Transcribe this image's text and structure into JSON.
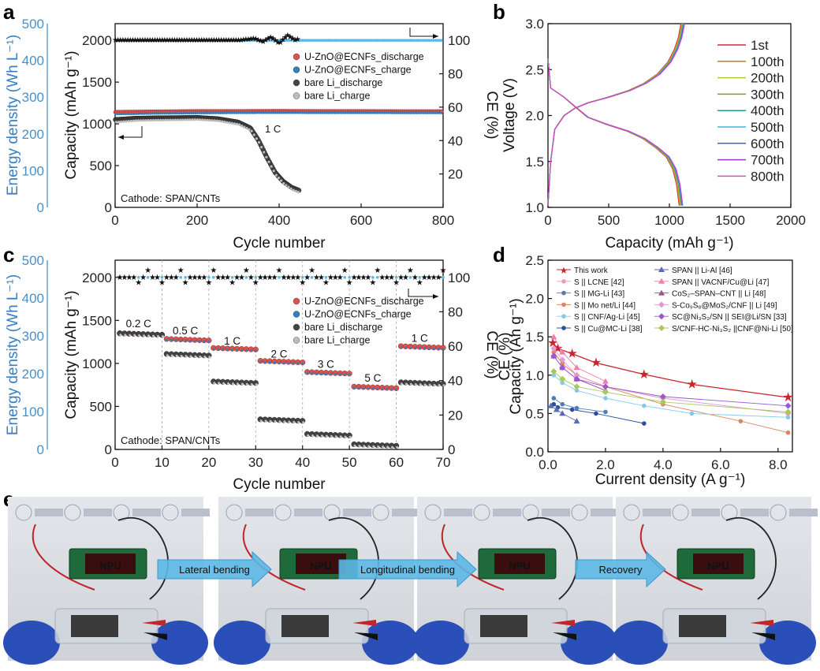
{
  "panels": {
    "a": "a",
    "b": "b",
    "c": "c",
    "d": "d",
    "e": "e"
  },
  "colors": {
    "uzno_discharge": "#d9534f",
    "uzno_charge": "#2f7fc1",
    "bare_discharge": "#444444",
    "bare_charge": "#bdbdbd",
    "energy_axis": "#4a90c8",
    "arrow": "#5bb8e6"
  },
  "chart_data": [
    {
      "id": "a",
      "type": "scatter",
      "xlabel": "Cycle number",
      "ylabel": "Capacity (mAh g⁻¹)",
      "y2label": "CE (%)",
      "y3label": "Energy density (Wh L⁻¹)",
      "xlim": [
        0,
        800
      ],
      "ylim": [
        0,
        2200
      ],
      "y2lim": [
        0,
        110
      ],
      "y3lim": [
        0,
        500
      ],
      "xticks": [
        0,
        200,
        400,
        600,
        800
      ],
      "yticks": [
        0,
        500,
        1000,
        1500,
        2000
      ],
      "y2ticks": [
        20,
        40,
        60,
        80,
        100
      ],
      "y3ticks": [
        0,
        100,
        200,
        300,
        400,
        500
      ],
      "annotation": "1 C",
      "note": "Cathode: SPAN/CNTs",
      "series": [
        {
          "name": "U-ZnO@ECNFs_discharge",
          "x": [
            1,
            100,
            200,
            300,
            400,
            500,
            600,
            700,
            800
          ],
          "y": [
            1140,
            1145,
            1150,
            1150,
            1152,
            1150,
            1150,
            1148,
            1148
          ]
        },
        {
          "name": "U-ZnO@ECNFs_charge",
          "x": [
            1,
            100,
            200,
            300,
            400,
            500,
            600,
            700,
            800
          ],
          "y": [
            1130,
            1138,
            1142,
            1145,
            1146,
            1145,
            1145,
            1144,
            1143
          ]
        },
        {
          "name": "bare Li_discharge",
          "x": [
            1,
            50,
            100,
            150,
            200,
            250,
            300,
            330,
            350,
            370,
            390,
            410,
            430,
            450
          ],
          "y": [
            1050,
            1065,
            1070,
            1072,
            1075,
            1060,
            1020,
            950,
            800,
            600,
            420,
            310,
            240,
            200
          ]
        },
        {
          "name": "bare Li_charge",
          "x": [
            1,
            50,
            100,
            150,
            200,
            250,
            300,
            330,
            350,
            370,
            390,
            410,
            430,
            450
          ],
          "y": [
            1040,
            1058,
            1063,
            1066,
            1070,
            1055,
            1012,
            940,
            790,
            590,
            410,
            300,
            232,
            192
          ]
        }
      ],
      "ce_series": [
        {
          "name": "U-ZnO@ECNFs",
          "x": [
            1,
            100,
            200,
            300,
            400,
            500,
            600,
            700,
            800
          ],
          "y": [
            100,
            100,
            100,
            100,
            100,
            100,
            100,
            100,
            100
          ]
        },
        {
          "name": "bare Li",
          "x": [
            1,
            100,
            200,
            300,
            340,
            360,
            380,
            400,
            420,
            440,
            450
          ],
          "y": [
            100,
            100,
            100,
            100,
            101,
            99,
            102,
            98,
            103,
            100,
            101
          ]
        }
      ]
    },
    {
      "id": "b",
      "type": "line",
      "xlabel": "Capacity (mAh g⁻¹)",
      "ylabel": "Voltage (V)",
      "xlim": [
        0,
        2000
      ],
      "ylim": [
        1.0,
        3.0
      ],
      "xticks": [
        0,
        500,
        1000,
        1500,
        2000
      ],
      "yticks": [
        1.0,
        1.5,
        2.0,
        2.5,
        3.0
      ],
      "series": [
        {
          "name": "1st",
          "color": "#d7263d",
          "cap": 1080
        },
        {
          "name": "100th",
          "color": "#c77d1a",
          "cap": 1085
        },
        {
          "name": "200th",
          "color": "#b8c42a",
          "cap": 1090
        },
        {
          "name": "300th",
          "color": "#7ea321",
          "cap": 1095
        },
        {
          "name": "400th",
          "color": "#1f9e8f",
          "cap": 1100
        },
        {
          "name": "500th",
          "color": "#3bb4e8",
          "cap": 1100
        },
        {
          "name": "600th",
          "color": "#4a5fc4",
          "cap": 1105
        },
        {
          "name": "700th",
          "color": "#8e3ec9",
          "cap": 1110
        },
        {
          "name": "800th",
          "color": "#d94ac5",
          "cap": 1110
        }
      ]
    },
    {
      "id": "c",
      "type": "scatter",
      "xlabel": "Cycle number",
      "ylabel": "Capacity (mAh g⁻¹)",
      "y2label": "CE (%)",
      "y3label": "Energy density (Wh L⁻¹)",
      "xlim": [
        0,
        70
      ],
      "ylim": [
        0,
        2200
      ],
      "y2lim": [
        0,
        110
      ],
      "y3lim": [
        0,
        500
      ],
      "xticks": [
        0,
        10,
        20,
        30,
        40,
        50,
        60,
        70
      ],
      "yticks": [
        0,
        500,
        1000,
        1500,
        2000
      ],
      "y2ticks": [
        0,
        20,
        40,
        60,
        80,
        100
      ],
      "y3ticks": [
        0,
        100,
        200,
        300,
        400,
        500
      ],
      "note": "Cathode: SPAN/CNTs",
      "rates": [
        {
          "label": "0.2 C",
          "x": 5,
          "y": 1420
        },
        {
          "label": "0.5 C",
          "x": 15,
          "y": 1340
        },
        {
          "label": "1 C",
          "x": 25,
          "y": 1220
        },
        {
          "label": "2 C",
          "x": 35,
          "y": 1070
        },
        {
          "label": "3 C",
          "x": 45,
          "y": 950
        },
        {
          "label": "5 C",
          "x": 55,
          "y": 790
        },
        {
          "label": "1 C",
          "x": 65,
          "y": 1250
        }
      ],
      "segments": [
        {
          "from": 1,
          "to": 10,
          "uzno": 1350,
          "bare": 1350
        },
        {
          "from": 11,
          "to": 20,
          "uzno": 1285,
          "bare": 1110
        },
        {
          "from": 21,
          "to": 30,
          "uzno": 1180,
          "bare": 790
        },
        {
          "from": 31,
          "to": 40,
          "uzno": 1030,
          "bare": 350
        },
        {
          "from": 41,
          "to": 50,
          "uzno": 900,
          "bare": 180
        },
        {
          "from": 51,
          "to": 60,
          "uzno": 730,
          "bare": 60
        },
        {
          "from": 61,
          "to": 70,
          "uzno": 1200,
          "bare": 780
        }
      ],
      "series": [
        {
          "name": "U-ZnO@ECNFs_discharge"
        },
        {
          "name": "U-ZnO@ECNFs_charge"
        },
        {
          "name": "bare Li_discharge"
        },
        {
          "name": "bare Li_charge"
        }
      ]
    },
    {
      "id": "d",
      "type": "line",
      "xlabel": "Current density (A g⁻¹)",
      "ylabel": "Capacity (Ah g⁻¹)",
      "ylabel_overlap": "CE (%)",
      "xlim": [
        0,
        8.5
      ],
      "ylim": [
        0,
        2.5
      ],
      "xticks": [
        "0.0",
        "2.0",
        "4.0",
        "6.0",
        "8.0"
      ],
      "yticks": [
        "0.0",
        "0.5",
        "1.0",
        "1.5",
        "2.0",
        "2.5"
      ],
      "series": [
        {
          "name": "This work",
          "color": "#c9252c",
          "marker": "star",
          "x": [
            0.17,
            0.34,
            0.84,
            1.67,
            3.34,
            5.01,
            8.35
          ],
          "y": [
            1.42,
            1.35,
            1.28,
            1.16,
            1.01,
            0.88,
            0.71
          ]
        },
        {
          "name": "S || LCNE [42]",
          "color": "#f29ab0",
          "marker": "circle",
          "x": [
            0.2,
            0.5,
            1.0,
            2.0,
            4.0
          ],
          "y": [
            1.3,
            1.15,
            1.0,
            0.85,
            0.7
          ]
        },
        {
          "name": "S || MG-Li [43]",
          "color": "#4f7fb8",
          "marker": "circle",
          "x": [
            0.2,
            0.5,
            1.0,
            2.0
          ],
          "y": [
            0.7,
            0.62,
            0.57,
            0.52
          ]
        },
        {
          "name": "S || Mo net/Li [44]",
          "color": "#d9875f",
          "marker": "circle",
          "x": [
            0.2,
            0.5,
            1.0,
            2.0,
            4.0,
            6.7,
            8.35
          ],
          "y": [
            1.3,
            1.15,
            1.0,
            0.85,
            0.62,
            0.4,
            0.25
          ]
        },
        {
          "name": "S || CNF/Ag-Li [45]",
          "color": "#85c9ea",
          "marker": "circle",
          "x": [
            0.2,
            0.5,
            1.0,
            2.0,
            3.34,
            5.0,
            8.35
          ],
          "y": [
            1.0,
            0.9,
            0.8,
            0.7,
            0.6,
            0.5,
            0.45
          ]
        },
        {
          "name": "S || Cu@MC-Li [38]",
          "color": "#2a4fa0",
          "marker": "circle",
          "x": [
            0.2,
            0.34,
            0.84,
            1.67,
            3.34
          ],
          "y": [
            0.62,
            0.58,
            0.55,
            0.5,
            0.37
          ]
        },
        {
          "name": "SPAN || Li-Al [46]",
          "color": "#5a6bb3",
          "marker": "triangle",
          "x": [
            0.1,
            0.3,
            0.5,
            1.0
          ],
          "y": [
            0.6,
            0.55,
            0.5,
            0.4
          ]
        },
        {
          "name": "SPAN || VACNF/Cu@Li [47]",
          "color": "#f07ca8",
          "marker": "triangle",
          "x": [
            0.2,
            0.5,
            1.0,
            2.0
          ],
          "y": [
            1.5,
            1.3,
            1.1,
            0.92
          ]
        },
        {
          "name": "CoS₂–SPAN–CNT || Li [48]",
          "color": "#a54c8a",
          "marker": "triangle",
          "x": [
            0.2,
            0.5,
            1.0,
            2.0
          ],
          "y": [
            1.25,
            1.1,
            0.95,
            0.8
          ]
        },
        {
          "name": "S-Co₉S₈@MoS₂/CNF || Li [49]",
          "color": "#e19bd0",
          "marker": "diamond",
          "x": [
            0.2,
            0.5,
            1.0,
            2.0,
            4.0,
            8.35
          ],
          "y": [
            1.35,
            1.2,
            1.0,
            0.85,
            0.7,
            0.5
          ]
        },
        {
          "name": "SC@Ni₃S₂/SN || SEI@Li/SN [33]",
          "color": "#9b59d0",
          "marker": "diamond",
          "x": [
            0.2,
            0.5,
            1.0,
            2.0,
            4.0,
            8.35
          ],
          "y": [
            1.25,
            1.1,
            0.95,
            0.85,
            0.72,
            0.6
          ]
        },
        {
          "name": "S/CNF-HC-Ni₃S₂ ||CNF@Ni-Li [50]",
          "color": "#a8c95a",
          "marker": "diamond",
          "x": [
            0.2,
            0.5,
            1.0,
            2.0,
            4.0,
            8.35
          ],
          "y": [
            1.05,
            0.95,
            0.85,
            0.78,
            0.65,
            0.52
          ]
        }
      ]
    }
  ],
  "photos": {
    "board_text": "NPU",
    "arrows": [
      "Lateral bending",
      "Longitudinal bending",
      "Recovery"
    ]
  }
}
